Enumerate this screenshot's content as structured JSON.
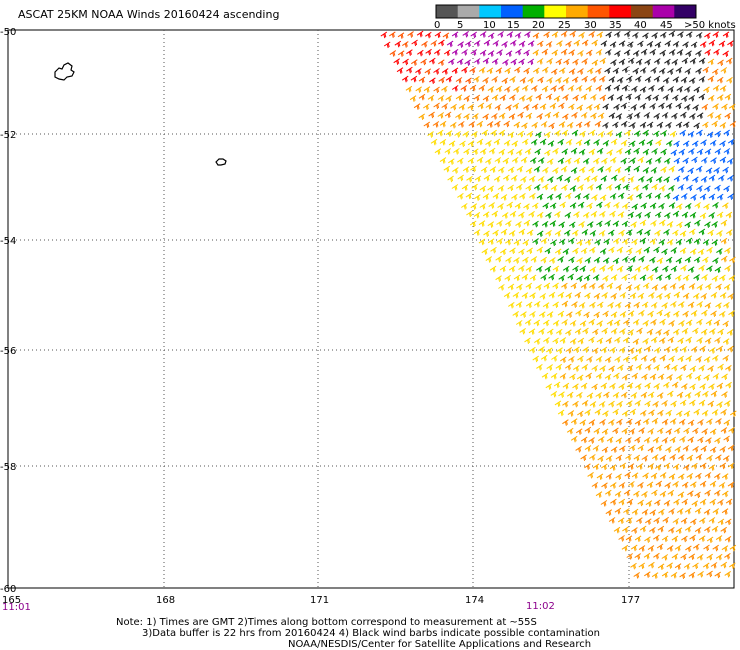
{
  "title": "ASCAT 25KM NOAA Winds 20160424 ascending",
  "legend": {
    "labels": [
      "0",
      "5",
      "10",
      "15",
      "20",
      "25",
      "30",
      "35",
      "40",
      "45",
      ">50 knots"
    ],
    "colors": [
      "#555555",
      "#aaaaaa",
      "#00c8ff",
      "#0060ff",
      "#00b000",
      "#ffff00",
      "#ffaa00",
      "#ff5500",
      "#ff0000",
      "#8b4513",
      "#aa00aa",
      "#330066"
    ]
  },
  "axes": {
    "lon_ticks": [
      "165",
      "168",
      "171",
      "174",
      "177"
    ],
    "lat_ticks": [
      "-50",
      "-52",
      "-54",
      "-56",
      "-58",
      "-60"
    ]
  },
  "times": [
    "11:01",
    "11:02"
  ],
  "notes": [
    "Note: 1) Times are GMT 2)Times along bottom correspond to measurement at ~55S",
    "3)Data buffer is 22 hrs from 20160424 4) Black wind barbs indicate possible contamination",
    "NOAA/NESDIS/Center for Satellite Applications and Research"
  ]
}
